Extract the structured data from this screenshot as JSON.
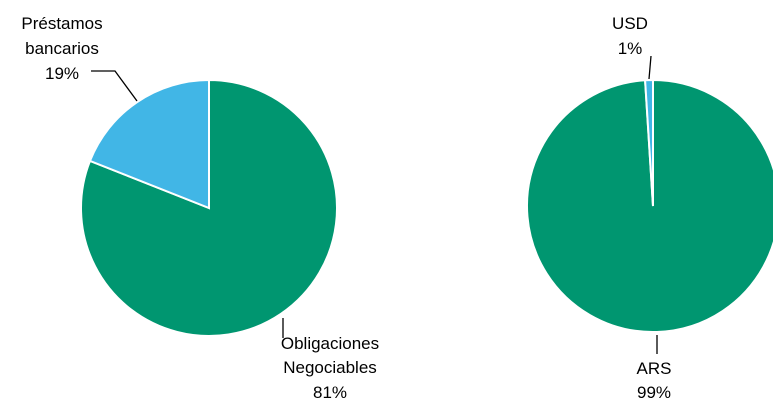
{
  "chart_data": [
    {
      "type": "pie",
      "slices": [
        {
          "label_lines": [
            "Préstamos",
            "bancarios"
          ],
          "pct_label": "19%",
          "value": 19,
          "color": "#41b6e6"
        },
        {
          "label_lines": [
            "Obligaciones",
            "Negociables"
          ],
          "pct_label": "81%",
          "value": 81,
          "color": "#009670"
        }
      ]
    },
    {
      "type": "pie",
      "slices": [
        {
          "label_lines": [
            "USD"
          ],
          "pct_label": "1%",
          "value": 1,
          "color": "#41b6e6"
        },
        {
          "label_lines": [
            "ARS"
          ],
          "pct_label": "99%",
          "value": 99,
          "color": "#009670"
        }
      ]
    }
  ]
}
